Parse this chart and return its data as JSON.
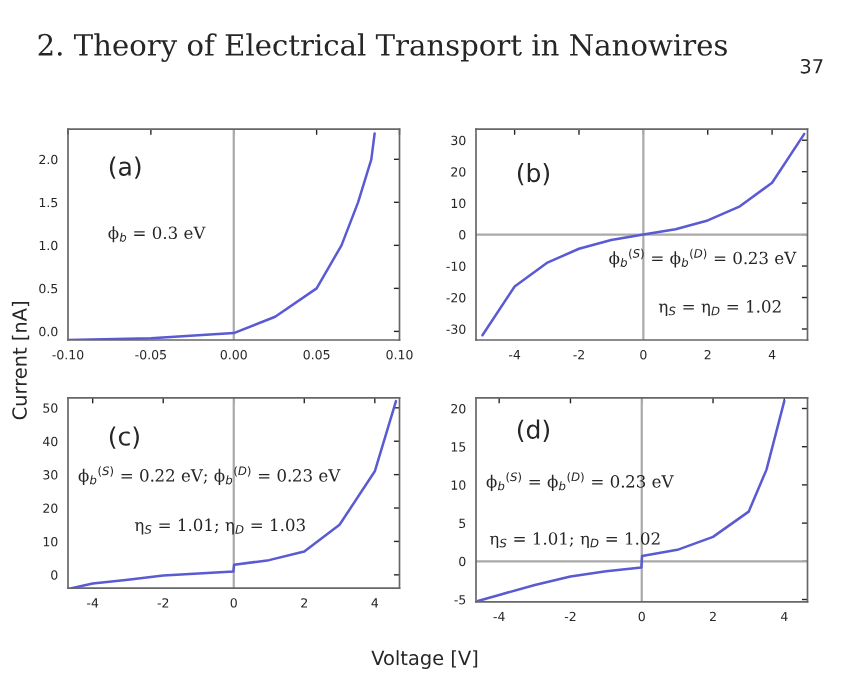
{
  "chart_data": [
    {
      "type": "line",
      "title": "2. Theory of Electrical Transport in Nanowires",
      "ylabel": "Current [nA]",
      "annotations": [
        "37",
        {
          "text": "(a)"
        },
        {
          "text": "ϕ$_{b}$ = 0.3 eV"
        }
      ],
      "x": [
        -0.1,
        -0.05,
        0,
        0.025,
        0.05,
        0.065,
        0.075,
        0.083,
        0.085
      ],
      "series": [
        {
          "color": "#5a5ad2",
          "values": [
            -0.1,
            -0.08,
            -0.02,
            0.17,
            0.5,
            1.0,
            1.5,
            2.0,
            2.3
          ]
        }
      ],
      "xlim": [
        -0.1,
        0.1
      ],
      "ylim": [
        -0.1,
        2.35
      ],
      "xticks": [
        {
          "value": -0.1,
          "label": "-0.10"
        },
        {
          "value": -0.05,
          "label": "-0.05"
        },
        {
          "value": 0,
          "label": "0.00"
        },
        {
          "value": 0.05,
          "label": "0.05"
        },
        {
          "value": 0.1,
          "label": "0.10"
        }
      ],
      "yticks": [
        {
          "value": 0,
          "label": "0.0"
        },
        0.5,
        {
          "value": 1,
          "label": "1.0"
        },
        1.5,
        {
          "value": 2,
          "label": "2.0"
        }
      ],
      "ref_lines": [
        {
          "axis": "x",
          "value": 0,
          "color": "#aaaaaa"
        }
      ],
      "grid": false
    },
    {
      "type": "line",
      "annotations": [
        {
          "text": "(b)"
        },
        {
          "text": "ϕ$_{b}$$^{(S)}$ = ϕ$_{b}$$^{(D)}$ = 0.23 eV"
        },
        {
          "text": "η$_{S}$ = η$_{D}$ = 1.02"
        }
      ],
      "x": [
        -5,
        -4,
        -3,
        -2,
        -1,
        0,
        1,
        2,
        3,
        4,
        5
      ],
      "series": [
        {
          "color": "#5a5ad2",
          "values": [
            -32,
            -16.5,
            -9,
            -4.5,
            -1.7,
            0,
            1.7,
            4.5,
            9,
            16.5,
            32
          ]
        }
      ],
      "xlim": [
        -5.2,
        5.1
      ],
      "ylim": [
        -33.5,
        33.5
      ],
      "xticks": [
        -4,
        -2,
        0,
        2,
        4
      ],
      "yticks": [
        -30,
        -20,
        -10,
        0,
        10,
        20,
        30
      ],
      "ref_lines": [
        {
          "axis": "x",
          "value": 0,
          "color": "#aaaaaa"
        },
        {
          "axis": "y",
          "value": 0,
          "color": "#aaaaaa"
        }
      ],
      "grid": false
    },
    {
      "type": "line",
      "xlabel": "Voltage [V]",
      "annotations": [
        {
          "text": "(c)"
        },
        {
          "text": "ϕ$_{b}$$^{(S)}$ = 0.22 eV; ϕ$_{b}$$^{(D)}$ = 0.23 eV"
        },
        {
          "text": "η$_{S}$ = 1.01; η$_{D}$ = 1.03"
        }
      ],
      "x": [
        -4.6,
        -4,
        -3,
        -2,
        -1,
        -0.01,
        0.01,
        1,
        2,
        3,
        4,
        4.6
      ],
      "series": [
        {
          "color": "#5a5ad2",
          "values": [
            -4,
            -2.6,
            -1.5,
            -0.2,
            0.4,
            1.0,
            3.0,
            4.4,
            7,
            15,
            31,
            52
          ]
        }
      ],
      "xlim": [
        -4.7,
        4.7
      ],
      "ylim": [
        -4,
        53
      ],
      "xticks": [
        -4,
        -2,
        0,
        2,
        4
      ],
      "yticks": [
        0,
        10,
        20,
        30,
        40,
        50
      ],
      "ref_lines": [
        {
          "axis": "x",
          "value": 0,
          "color": "#aaaaaa"
        }
      ],
      "grid": false
    },
    {
      "type": "line",
      "annotations": [
        {
          "text": "(d)"
        },
        {
          "text": "ϕ$_{b}$$^{(S)}$ = ϕ$_{b}$$^{(D)}$ = 0.23 eV"
        },
        {
          "text": "η$_{S}$ = 1.01; η$_{D}$ = 1.02"
        }
      ],
      "x": [
        -4.6,
        -4,
        -3,
        -2,
        -1,
        -0.01,
        0.01,
        1,
        2,
        3,
        3.5,
        4
      ],
      "series": [
        {
          "color": "#5a5ad2",
          "values": [
            -5.2,
            -4.4,
            -3.1,
            -2.0,
            -1.3,
            -0.8,
            0.7,
            1.5,
            3.2,
            6.5,
            12,
            21
          ]
        }
      ],
      "xlim": [
        -4.65,
        4.65
      ],
      "ylim": [
        -5.3,
        21.4
      ],
      "xticks": [
        -4,
        -2,
        0,
        2,
        4
      ],
      "yticks": [
        -5,
        0,
        5,
        10,
        15,
        20
      ],
      "ref_lines": [
        {
          "axis": "x",
          "value": 0,
          "color": "#aaaaaa"
        },
        {
          "axis": "y",
          "value": 0,
          "color": "#aaaaaa"
        }
      ],
      "grid": false
    }
  ]
}
